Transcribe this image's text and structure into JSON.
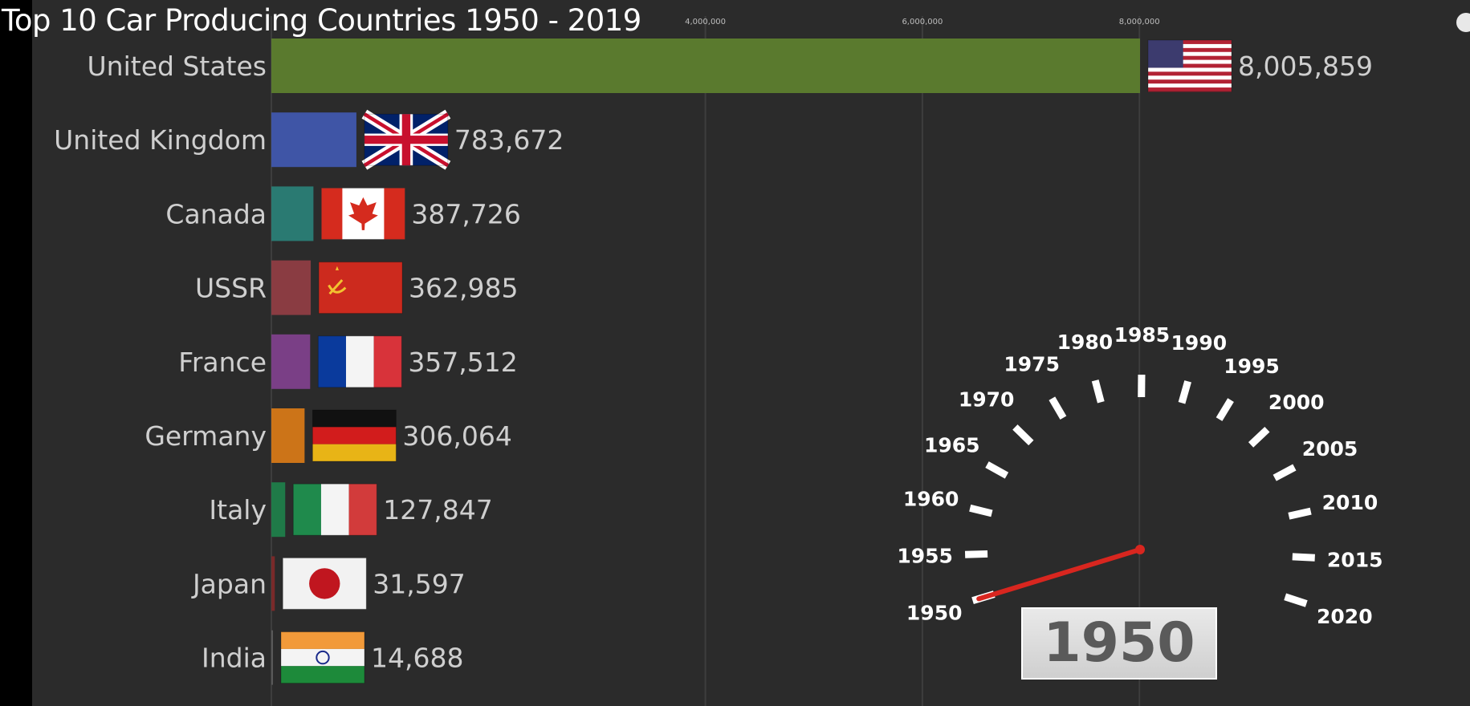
{
  "title": "Top 10 Car Producing Countries 1950 - 2019",
  "current_year": "1950",
  "colors": {
    "background": "#2b2b2b",
    "needle": "#d8261f",
    "text": "#cfcfcf"
  },
  "chart_data": {
    "type": "bar",
    "orientation": "horizontal",
    "title": "Top 10 Car Producing Countries 1950 - 2019",
    "xlim": [
      0,
      8005859
    ],
    "x_ticks": [
      4000000,
      6000000,
      8000000
    ],
    "x_tick_labels": [
      "4,000,000",
      "6,000,000",
      "8,000,000"
    ],
    "grid": true,
    "categories": [
      "United States",
      "United Kingdom",
      "Canada",
      "USSR",
      "France",
      "Germany",
      "Italy",
      "Japan",
      "India"
    ],
    "values": [
      8005859,
      783672,
      387726,
      362985,
      357512,
      306064,
      127847,
      31597,
      14688
    ],
    "value_labels": [
      "8,005,859",
      "783,672",
      "387,726",
      "362,985",
      "357,512",
      "306,064",
      "127,847",
      "31,597",
      "14,688"
    ],
    "bar_colors": [
      "#5a7a2e",
      "#3f55a6",
      "#2a7a72",
      "#8a3c42",
      "#7a3f86",
      "#cc7418",
      "#1f7a48",
      "#7a2a2a",
      "#5a5a5a"
    ],
    "flags": [
      "us-flag",
      "uk-flag",
      "canada-flag",
      "ussr-flag",
      "france-flag",
      "germany-flag",
      "italy-flag",
      "japan-flag",
      "india-flag"
    ]
  },
  "year_gauge": {
    "labels": [
      "1950",
      "1955",
      "1960",
      "1965",
      "1970",
      "1975",
      "1980",
      "1985",
      "1990",
      "1995",
      "2000",
      "2005",
      "2010",
      "2015",
      "2020"
    ],
    "value": 1950
  }
}
